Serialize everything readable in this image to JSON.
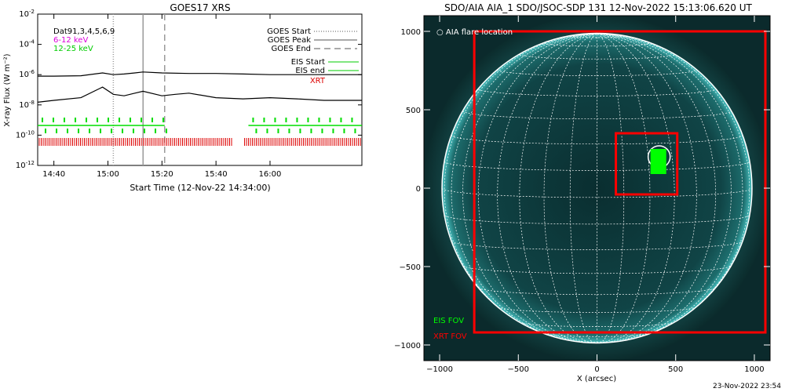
{
  "left_panel": {
    "title": "GOES17 XRS",
    "ylabel": "X-ray Flux (W m⁻²)",
    "xlabel": "Start Time (12-Nov-22 14:34:00)",
    "legend_tl": [
      {
        "text": "Dat91,3,4,5,6,9",
        "color": "#000000"
      },
      {
        "text": "6-12 keV",
        "color": "#dd00dd"
      },
      {
        "text": "12-25 keV",
        "color": "#00dd00"
      }
    ],
    "legend_tr": [
      {
        "text": "GOES Start",
        "color": "#000000",
        "style": "dotted"
      },
      {
        "text": "GOES Peak",
        "color": "#000000",
        "style": "solid"
      },
      {
        "text": "GOES End",
        "color": "#000000",
        "style": "dashed"
      },
      {
        "text": "EIS Start",
        "color": "#00dd00",
        "style": "solid"
      },
      {
        "text": "EIS end",
        "color": "#00dd00",
        "style": "solid"
      },
      {
        "text": "XRT",
        "color": "#dd0000",
        "style": "none"
      }
    ]
  },
  "right_panel": {
    "title": "SDO/AIA AIA_1 SDO/JSOC-SDP 131 12-Nov-2022 15:13:06.620 UT",
    "xlabel": "X (arcsec)",
    "legend_top": "○ AIA flare location",
    "legend_eis": "EIS FOV",
    "legend_xrt": "XRT FOV",
    "footer": "23-Nov-2022 23:54",
    "colors": {
      "disk": "#0d3a3a",
      "limb": "#5fe0e0",
      "grid": "#ffffff",
      "xrt": "#ff0000",
      "eis": "#00ff00"
    }
  },
  "chart_data": [
    {
      "type": "line",
      "title": "GOES17 XRS",
      "xlabel": "Start Time (12-Nov-22 14:34:00)",
      "ylabel": "X-ray Flux (W m-2)",
      "yscale": "log",
      "ylim": [
        1e-12,
        0.01
      ],
      "xlim": [
        "14:34",
        "16:34"
      ],
      "x_ticks": [
        "14:40",
        "15:00",
        "15:20",
        "15:40",
        "16:00"
      ],
      "y_ticks": [
        "10^-2",
        "10^-4",
        "10^-6",
        "10^-8",
        "10^-10",
        "10^-12"
      ],
      "series": [
        {
          "name": "",
          "color": "#000000",
          "x": [
            "14:34",
            "14:40",
            "14:50",
            "14:58",
            "15:02",
            "15:06",
            "15:10",
            "15:13",
            "15:20",
            "15:30",
            "15:40",
            "15:50",
            "16:00",
            "16:10",
            "16:20",
            "16:34"
          ],
          "y": [
            8e-07,
            8e-07,
            8.5e-07,
            1.3e-06,
            1e-06,
            1.1e-06,
            1.3e-06,
            1.5e-06,
            1.3e-06,
            1.2e-06,
            1.2e-06,
            1.1e-06,
            1e-06,
            1e-06,
            1e-06,
            1e-06
          ]
        },
        {
          "name": "",
          "color": "#000000",
          "x": [
            "14:34",
            "14:40",
            "14:50",
            "14:58",
            "15:02",
            "15:06",
            "15:10",
            "15:13",
            "15:20",
            "15:25",
            "15:30",
            "15:40",
            "15:50",
            "16:00",
            "16:10",
            "16:20",
            "16:34"
          ],
          "y": [
            1.5e-08,
            2e-08,
            3e-08,
            1.5e-07,
            5e-08,
            4e-08,
            6e-08,
            8e-08,
            4e-08,
            5e-08,
            6e-08,
            3e-08,
            2.5e-08,
            3e-08,
            2.5e-08,
            2e-08,
            2e-08
          ]
        }
      ],
      "vlines": [
        {
          "label": "GOES Start",
          "x": "15:02",
          "style": "dotted"
        },
        {
          "label": "GOES Peak",
          "x": "15:13",
          "style": "solid"
        },
        {
          "label": "GOES End",
          "x": "15:21",
          "style": "dashed"
        }
      ],
      "eis_segments": [
        [
          "14:34",
          "15:21"
        ],
        [
          "15:52",
          "16:34"
        ]
      ],
      "xrt_segments": [
        [
          "14:34",
          "15:46"
        ],
        [
          "15:50",
          "16:34"
        ]
      ]
    },
    {
      "type": "image",
      "title": "SDO/AIA AIA_1 SDO/JSOC-SDP 131 12-Nov-2022 15:13:06.620 UT",
      "xlabel": "X (arcsec)",
      "xlim": [
        -1100,
        1100
      ],
      "ylim": [
        -1100,
        1100
      ],
      "x_ticks": [
        -1000,
        -500,
        0,
        500,
        1000
      ],
      "y_ticks": [
        -1000,
        -500,
        0,
        500,
        1000
      ],
      "solar_radius_arcsec": 985,
      "xrt_fov": {
        "x0": -780,
        "y0": -920,
        "x1": 1070,
        "y1": 1000
      },
      "xrt_fov_small": {
        "x0": 120,
        "y0": -40,
        "x1": 510,
        "y1": 350
      },
      "eis_fov": {
        "x0": 340,
        "y0": 90,
        "x1": 440,
        "y1": 250
      },
      "flare_location": {
        "x": 395,
        "y": 200,
        "r": 70
      }
    }
  ]
}
